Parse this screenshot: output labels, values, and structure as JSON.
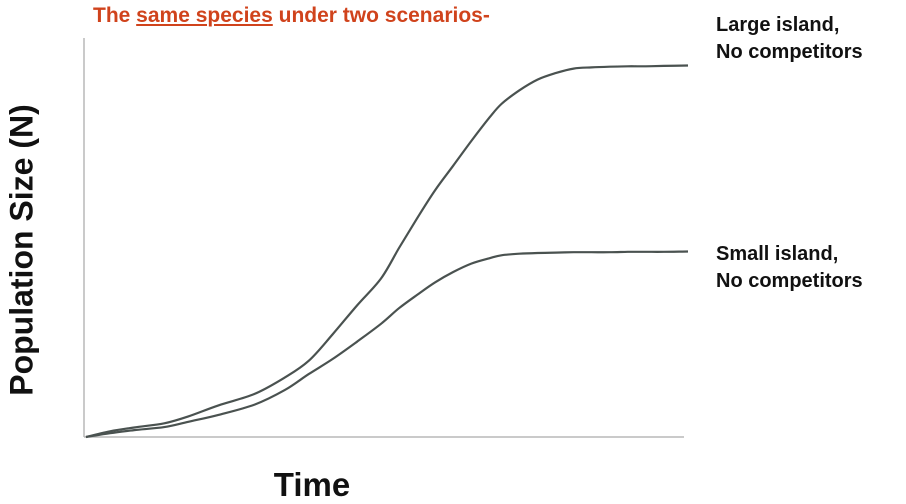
{
  "chart_data": {
    "type": "line",
    "title": {
      "prefix": "The ",
      "underlined": "same species",
      "suffix": " under two scenarios-"
    },
    "xlabel": "Time",
    "ylabel": "Population Size (N)",
    "xlim": [
      0,
      100
    ],
    "ylim": [
      0,
      100
    ],
    "grid": false,
    "line_color": "#4a5250",
    "title_color": "#d0431c",
    "series": [
      {
        "name_lines": [
          "Large island,",
          "No competitors"
        ],
        "x": [
          0,
          4,
          8,
          13,
          17,
          22,
          28,
          33,
          37,
          41,
          45,
          49,
          52,
          55,
          58,
          61,
          64,
          67,
          69,
          72,
          75,
          78,
          81,
          84,
          87,
          90,
          93,
          96,
          100
        ],
        "y": [
          0,
          1.5,
          2.5,
          3.6,
          5.4,
          8.3,
          11.3,
          15.6,
          20,
          27,
          34.5,
          41.6,
          49.6,
          57.4,
          64.8,
          71.2,
          77.7,
          83.8,
          87.4,
          91,
          93.8,
          95.5,
          96.7,
          97,
          97.2,
          97.3,
          97.3,
          97.4,
          97.5
        ]
      },
      {
        "name_lines": [
          "Small island,",
          "No competitors"
        ],
        "x": [
          0,
          4,
          8,
          13,
          17,
          22,
          28,
          33,
          37,
          41,
          45,
          49,
          52,
          55,
          58,
          61,
          64,
          67,
          69,
          72,
          75,
          78,
          81,
          84,
          87,
          90,
          93,
          96,
          100
        ],
        "y": [
          0,
          1,
          1.8,
          2.6,
          4,
          5.8,
          8.5,
          12.3,
          16.5,
          20.5,
          25,
          29.7,
          33.8,
          37.3,
          40.6,
          43.3,
          45.5,
          46.9,
          47.7,
          48.1,
          48.3,
          48.4,
          48.5,
          48.5,
          48.5,
          48.6,
          48.6,
          48.6,
          48.7
        ]
      }
    ]
  }
}
